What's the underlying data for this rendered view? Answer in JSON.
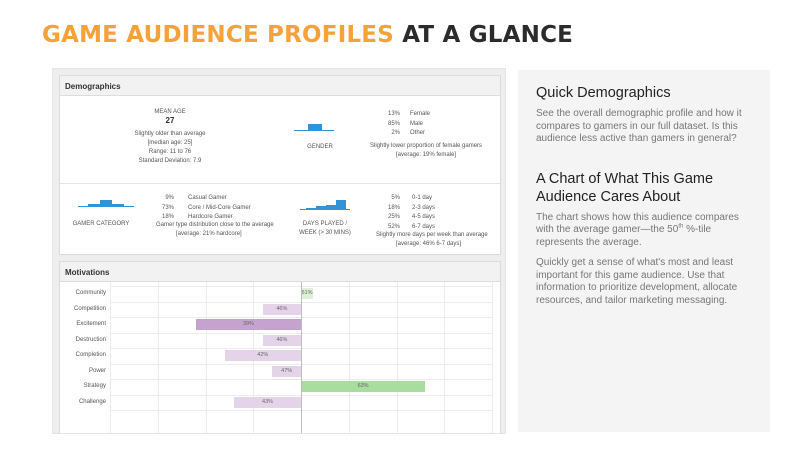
{
  "title": {
    "part1": "GAME AUDIENCE PROFILES",
    "part2": "AT A GLANCE"
  },
  "demographics": {
    "header": "Demographics",
    "age": {
      "label": "MEAN AGE",
      "value": "27",
      "note": "Slightly older than average",
      "median": "[median age: 25]",
      "range": "Range: 11 to 76",
      "sd": "Standard Deviation: 7.9"
    },
    "gender": {
      "label": "GENDER",
      "rows": [
        {
          "pct": "13%",
          "name": "Female"
        },
        {
          "pct": "85%",
          "name": "Male"
        },
        {
          "pct": "2%",
          "name": "Other"
        }
      ],
      "note": "Slightly lower proportion of female gamers",
      "avg": "[average: 19% female]"
    },
    "category": {
      "label": "GAMER CATEGORY",
      "rows": [
        {
          "pct": "9%",
          "name": "Casual Gamer"
        },
        {
          "pct": "73%",
          "name": "Core / Mid-Core Gamer"
        },
        {
          "pct": "18%",
          "name": "Hardcore Gamer"
        }
      ],
      "note": "Gamer type distribution close to the average",
      "avg": "[average: 21% hardcore]"
    },
    "days": {
      "label1": "DAYS PLAYED /",
      "label2": "WEEK (> 30 MINS)",
      "rows": [
        {
          "pct": "5%",
          "name": "0-1 day"
        },
        {
          "pct": "18%",
          "name": "2-3 days"
        },
        {
          "pct": "25%",
          "name": "4-5 days"
        },
        {
          "pct": "52%",
          "name": "6-7 days"
        }
      ],
      "note": "Slightly more days per week than average",
      "avg": "[average: 46% 6-7 days]"
    }
  },
  "motivations": {
    "header": "Motivations",
    "chart_data": {
      "type": "bar",
      "categories": [
        "Community",
        "Competition",
        "Excitement",
        "Destruction",
        "Completion",
        "Power",
        "Strategy",
        "Challenge"
      ],
      "values": [
        51,
        46,
        39,
        46,
        42,
        47,
        63,
        43
      ],
      "value_labels": [
        "51%",
        "46%",
        "39%",
        "46%",
        "42%",
        "47%",
        "63%",
        "43%"
      ],
      "baseline": 50,
      "xlim": [
        30,
        70
      ],
      "colors": {
        "verylow": "#c6a3cf",
        "low": "#e5d3ea",
        "mid-high": "#ddf1d9",
        "high": "#a9dda0"
      }
    }
  },
  "side": {
    "h1": "Quick Demographics",
    "p1": "See the overall demographic profile and how it compares to gamers in our full dataset. Is this audience less active than gamers in general?",
    "h2": "A Chart of What This Game Audience Cares About",
    "p2a": "The chart shows how this audience compares with the average gamer—the 50",
    "p2sup": "th",
    "p2b": " %-tile represents the average.",
    "p3": "Quickly get a sense of what's most and least important for this game audience. Use that information to prioritize development, allocate resources, and tailor marketing messaging."
  }
}
